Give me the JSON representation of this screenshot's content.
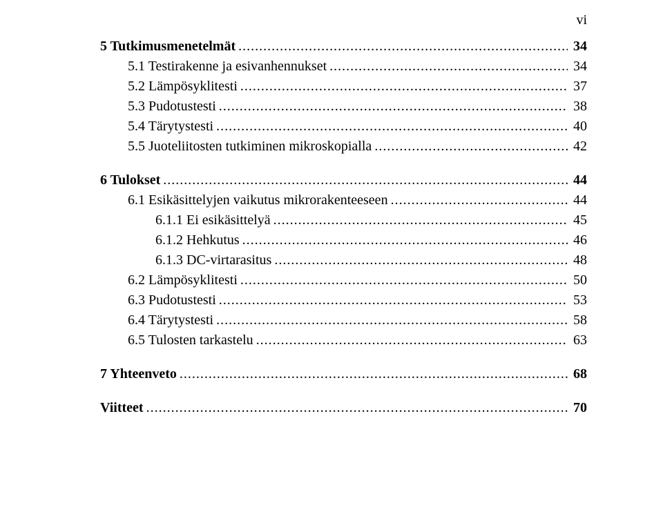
{
  "page_label": "vi",
  "font_family": "Times New Roman",
  "text_color": "#000000",
  "background_color": "#ffffff",
  "entries": [
    {
      "level": 0,
      "bold": true,
      "label": "5 Tutkimusmenetelmät",
      "page": "34",
      "gap_before": false
    },
    {
      "level": 1,
      "bold": false,
      "label": "5.1 Testirakenne ja esivanhennukset",
      "page": "34",
      "gap_before": false
    },
    {
      "level": 1,
      "bold": false,
      "label": "5.2 Lämpösyklitesti",
      "page": "37",
      "gap_before": false
    },
    {
      "level": 1,
      "bold": false,
      "label": "5.3 Pudotustesti",
      "page": "38",
      "gap_before": false
    },
    {
      "level": 1,
      "bold": false,
      "label": "5.4 Tärytystesti",
      "page": "40",
      "gap_before": false
    },
    {
      "level": 1,
      "bold": false,
      "label": "5.5 Juoteliitosten tutkiminen mikroskopialla",
      "page": "42",
      "gap_before": false
    },
    {
      "level": 0,
      "bold": true,
      "label": "6 Tulokset",
      "page": "44",
      "gap_before": true
    },
    {
      "level": 1,
      "bold": false,
      "label": "6.1 Esikäsittelyjen vaikutus mikrorakenteeseen",
      "page": "44",
      "gap_before": false
    },
    {
      "level": 2,
      "bold": false,
      "label": "6.1.1 Ei esikäsittelyä",
      "page": "45",
      "gap_before": false
    },
    {
      "level": 2,
      "bold": false,
      "label": "6.1.2 Hehkutus",
      "page": "46",
      "gap_before": false
    },
    {
      "level": 2,
      "bold": false,
      "label": "6.1.3 DC-virtarasitus",
      "page": "48",
      "gap_before": false
    },
    {
      "level": 1,
      "bold": false,
      "label": "6.2 Lämpösyklitesti",
      "page": "50",
      "gap_before": false
    },
    {
      "level": 1,
      "bold": false,
      "label": "6.3 Pudotustesti",
      "page": "53",
      "gap_before": false
    },
    {
      "level": 1,
      "bold": false,
      "label": "6.4 Tärytystesti",
      "page": "58",
      "gap_before": false
    },
    {
      "level": 1,
      "bold": false,
      "label": "6.5 Tulosten tarkastelu",
      "page": "63",
      "gap_before": false
    },
    {
      "level": 0,
      "bold": true,
      "label": "7 Yhteenveto",
      "page": "68",
      "gap_before": true
    },
    {
      "level": 0,
      "bold": true,
      "label": "Viitteet",
      "page": "70",
      "gap_before": true
    }
  ]
}
